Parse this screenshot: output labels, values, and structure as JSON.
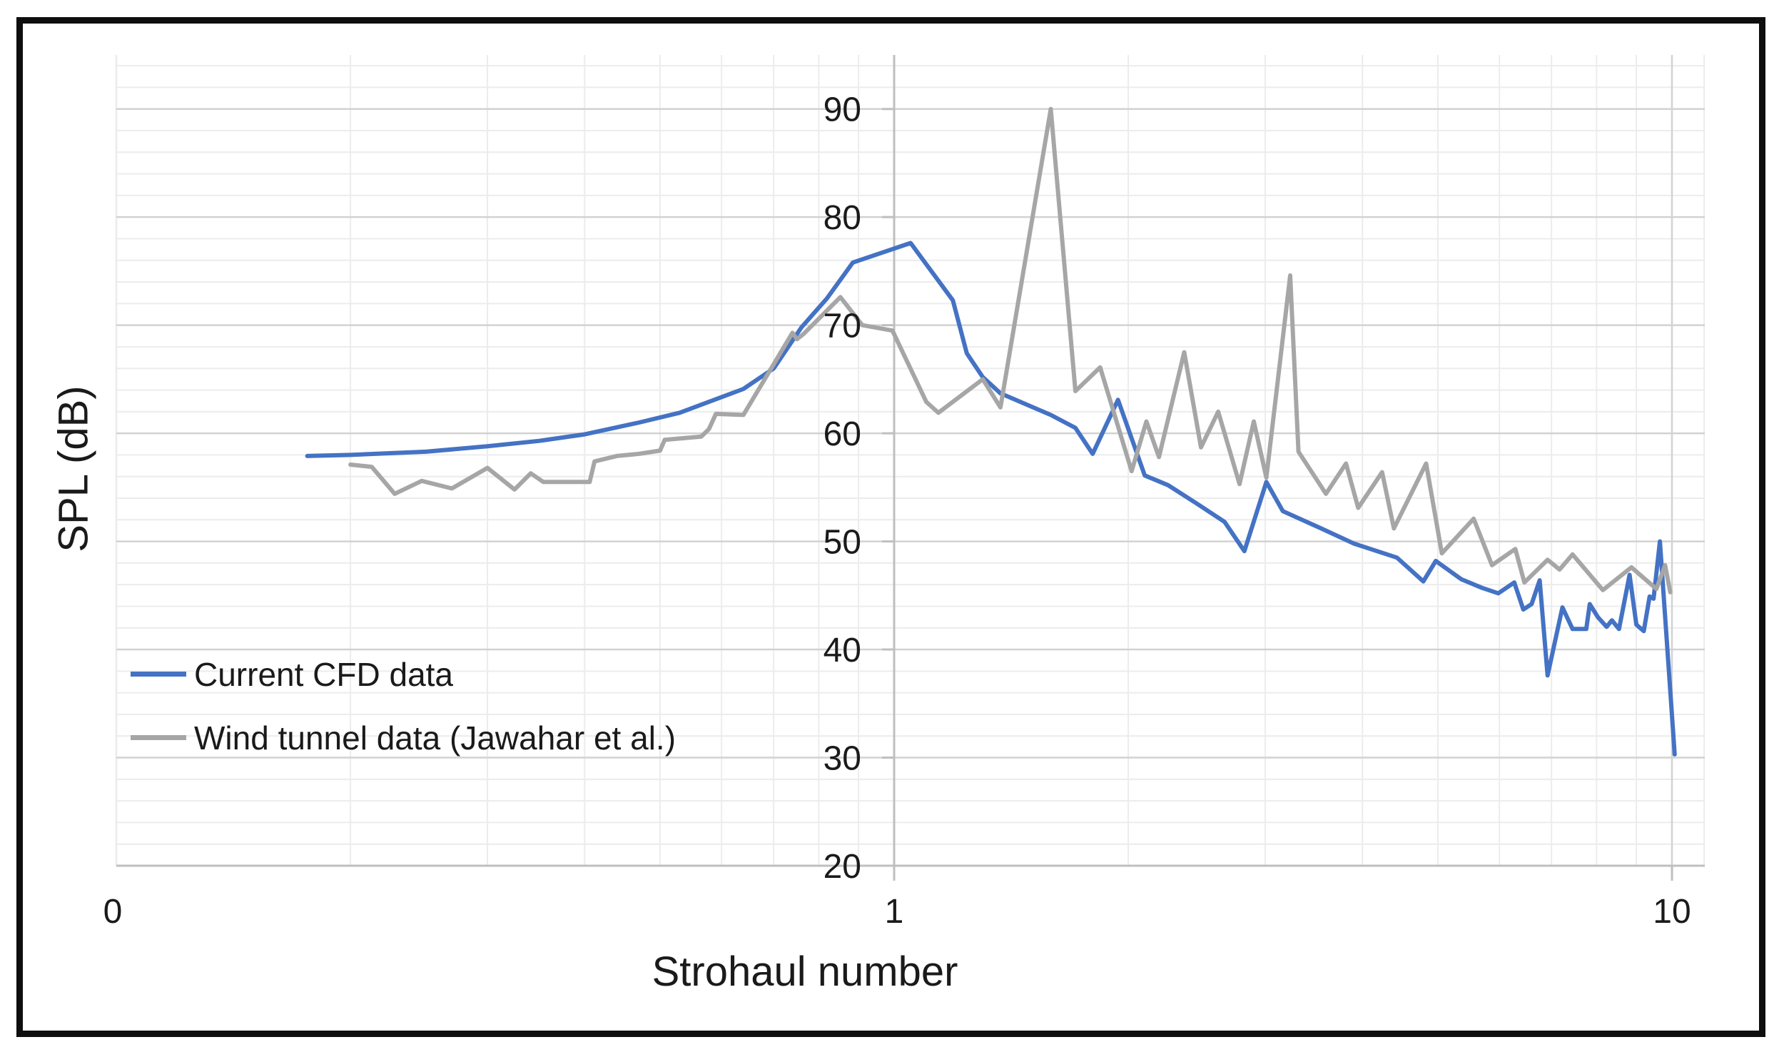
{
  "chart_data": {
    "type": "line",
    "title": "",
    "xlabel": "Strohaul number",
    "ylabel": "SPL (dB)",
    "grid": true,
    "legend_position": "inside-left",
    "x_axis": {
      "scale": "log",
      "min": 0.1,
      "max": 11,
      "tick_labels": [
        {
          "value": 0.1,
          "label": "0"
        },
        {
          "value": 1,
          "label": "1"
        },
        {
          "value": 10,
          "label": "10"
        }
      ],
      "minor_gridlines": [
        0.2,
        0.3,
        0.4,
        0.5,
        0.6,
        0.7,
        0.8,
        0.9,
        2,
        3,
        4,
        5,
        6,
        7,
        8,
        9,
        11
      ],
      "major_gridlines": [
        1,
        10
      ]
    },
    "y_axis": {
      "min": 20,
      "max": 95,
      "major_unit": 10,
      "minor_unit": 2,
      "tick_labels": [
        90,
        80,
        70,
        60,
        50,
        40,
        30,
        20
      ]
    },
    "series": [
      {
        "name": "Current CFD data",
        "color": "#4472C4",
        "points": [
          [
            0.176,
            57.9
          ],
          [
            0.2,
            58.0
          ],
          [
            0.25,
            58.3
          ],
          [
            0.3,
            58.8
          ],
          [
            0.35,
            59.3
          ],
          [
            0.4,
            59.9
          ],
          [
            0.47,
            61.0
          ],
          [
            0.53,
            61.9
          ],
          [
            0.64,
            64.1
          ],
          [
            0.7,
            66.0
          ],
          [
            0.76,
            69.8
          ],
          [
            0.82,
            72.5
          ],
          [
            0.885,
            75.8
          ],
          [
            1.05,
            77.6
          ],
          [
            1.19,
            72.3
          ],
          [
            1.24,
            67.4
          ],
          [
            1.3,
            65.2
          ],
          [
            1.37,
            63.7
          ],
          [
            1.59,
            61.7
          ],
          [
            1.71,
            60.5
          ],
          [
            1.8,
            58.1
          ],
          [
            1.94,
            63.1
          ],
          [
            2.1,
            56.1
          ],
          [
            2.25,
            55.2
          ],
          [
            2.45,
            53.5
          ],
          [
            2.66,
            51.8
          ],
          [
            2.82,
            49.1
          ],
          [
            3.01,
            55.5
          ],
          [
            3.16,
            52.8
          ],
          [
            3.54,
            51.2
          ],
          [
            3.9,
            49.8
          ],
          [
            4.43,
            48.5
          ],
          [
            4.79,
            46.3
          ],
          [
            4.97,
            48.2
          ],
          [
            5.36,
            46.5
          ],
          [
            5.7,
            45.7
          ],
          [
            5.98,
            45.2
          ],
          [
            6.27,
            46.2
          ],
          [
            6.44,
            43.7
          ],
          [
            6.6,
            44.2
          ],
          [
            6.76,
            46.4
          ],
          [
            6.92,
            37.6
          ],
          [
            7.23,
            43.9
          ],
          [
            7.45,
            41.9
          ],
          [
            7.76,
            41.9
          ],
          [
            7.84,
            44.2
          ],
          [
            8.03,
            43.0
          ],
          [
            8.24,
            42.1
          ],
          [
            8.37,
            42.7
          ],
          [
            8.55,
            41.9
          ],
          [
            8.82,
            46.9
          ],
          [
            9.0,
            42.3
          ],
          [
            9.2,
            41.7
          ],
          [
            9.36,
            44.9
          ],
          [
            9.47,
            44.7
          ],
          [
            9.65,
            50.0
          ],
          [
            10.08,
            30.3
          ]
        ]
      },
      {
        "name": "Wind tunnel data (Jawahar et al.)",
        "color": "#A6A6A6",
        "points": [
          [
            0.2,
            57.1
          ],
          [
            0.213,
            56.9
          ],
          [
            0.228,
            54.4
          ],
          [
            0.247,
            55.6
          ],
          [
            0.27,
            54.9
          ],
          [
            0.3,
            56.8
          ],
          [
            0.325,
            54.8
          ],
          [
            0.341,
            56.3
          ],
          [
            0.354,
            55.5
          ],
          [
            0.406,
            55.5
          ],
          [
            0.412,
            57.4
          ],
          [
            0.44,
            57.9
          ],
          [
            0.47,
            58.1
          ],
          [
            0.5,
            58.4
          ],
          [
            0.507,
            59.4
          ],
          [
            0.565,
            59.7
          ],
          [
            0.578,
            60.4
          ],
          [
            0.59,
            61.8
          ],
          [
            0.64,
            61.7
          ],
          [
            0.74,
            69.3
          ],
          [
            0.75,
            68.7
          ],
          [
            0.765,
            69.2
          ],
          [
            0.853,
            72.6
          ],
          [
            0.91,
            70.0
          ],
          [
            0.995,
            69.5
          ],
          [
            1.1,
            62.9
          ],
          [
            1.14,
            61.9
          ],
          [
            1.3,
            65.0
          ],
          [
            1.37,
            62.4
          ],
          [
            1.59,
            90.0
          ],
          [
            1.71,
            63.9
          ],
          [
            1.84,
            66.1
          ],
          [
            2.02,
            56.5
          ],
          [
            2.11,
            61.1
          ],
          [
            2.19,
            57.8
          ],
          [
            2.36,
            67.5
          ],
          [
            2.48,
            58.7
          ],
          [
            2.61,
            62.0
          ],
          [
            2.78,
            55.3
          ],
          [
            2.9,
            61.1
          ],
          [
            3.01,
            55.9
          ],
          [
            3.23,
            74.6
          ],
          [
            3.31,
            58.3
          ],
          [
            3.59,
            54.4
          ],
          [
            3.81,
            57.2
          ],
          [
            3.95,
            53.1
          ],
          [
            4.24,
            56.4
          ],
          [
            4.39,
            51.2
          ],
          [
            4.83,
            57.2
          ],
          [
            5.06,
            48.9
          ],
          [
            5.56,
            52.1
          ],
          [
            5.87,
            47.8
          ],
          [
            6.29,
            49.3
          ],
          [
            6.46,
            46.2
          ],
          [
            6.92,
            48.3
          ],
          [
            7.17,
            47.4
          ],
          [
            7.45,
            48.8
          ],
          [
            8.15,
            45.5
          ],
          [
            8.87,
            47.6
          ],
          [
            9.55,
            45.6
          ],
          [
            9.8,
            47.8
          ],
          [
            9.95,
            45.3
          ]
        ]
      }
    ]
  },
  "colors": {
    "minor_grid": "#ececec",
    "major_grid": "#d2d2d2",
    "axis_line": "#bfbfbf",
    "frame": "#0e0e0e",
    "text": "#1a1a1a"
  }
}
